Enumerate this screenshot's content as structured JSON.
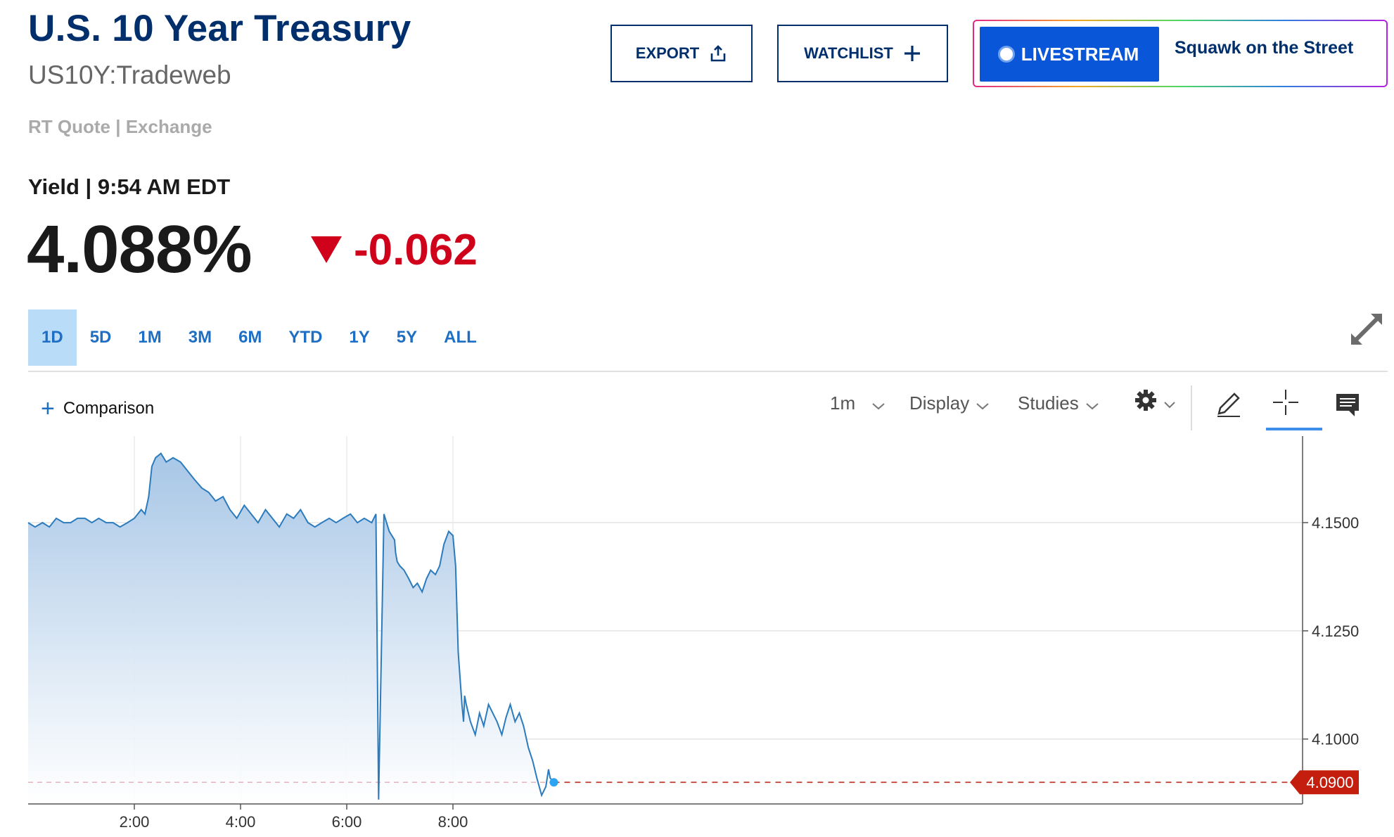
{
  "header": {
    "title": "U.S. 10 Year Treasury",
    "symbol": "US10Y:Tradeweb",
    "quote_type": "RT Quote | Exchange",
    "yield_label": "Yield | 9:54 AM EDT",
    "price": "4.088%",
    "change": "-0.062"
  },
  "actions": {
    "export_label": "EXPORT",
    "watchlist_label": "WATCHLIST",
    "livestream_label": "LIVESTREAM",
    "show_name": "Squawk on the Street"
  },
  "range_tabs": [
    "1D",
    "5D",
    "1M",
    "3M",
    "6M",
    "YTD",
    "1Y",
    "5Y",
    "ALL"
  ],
  "active_range": "1D",
  "toolbar": {
    "comparison_label": "Comparison",
    "interval": "1m",
    "display_label": "Display",
    "studies_label": "Studies"
  },
  "colors": {
    "brand_navy": "#002f6c",
    "accent_blue": "#1e6fc4",
    "negative_red": "#d0021b",
    "line_blue": "#2b7bbd",
    "live_blue": "#0957d8"
  },
  "icons": [
    "share-icon",
    "plus-icon",
    "live-dot-icon",
    "expand-icon",
    "chevron-down-icon",
    "gear-icon",
    "pencil-icon",
    "crosshair-icon",
    "comment-icon",
    "down-triangle-icon"
  ],
  "chart_data": {
    "type": "area",
    "x_ticks": [
      "2:00",
      "4:00",
      "6:00",
      "8:00"
    ],
    "y_ticks": [
      "4.1500",
      "4.1250",
      "4.1000"
    ],
    "y_tick_values": [
      4.15,
      4.125,
      4.1
    ],
    "ylim": [
      4.085,
      4.17
    ],
    "xlim_hours": [
      0.0,
      24.0
    ],
    "current_value": 4.09,
    "current_label": "4.0900",
    "grid": "horizontal",
    "series": [
      {
        "x": [
          0.0,
          0.13,
          0.27,
          0.4,
          0.53,
          0.67,
          0.8,
          0.93,
          1.07,
          1.2,
          1.33,
          1.47,
          1.6,
          1.73,
          1.87,
          2.0,
          2.13,
          2.2,
          2.27,
          2.33,
          2.4,
          2.5,
          2.6,
          2.73,
          2.87,
          3.0,
          3.13,
          3.27,
          3.4,
          3.53,
          3.67,
          3.8,
          3.93,
          4.07,
          4.2,
          4.33,
          4.47,
          4.6,
          4.73,
          4.87,
          5.0,
          5.13,
          5.27,
          5.4,
          5.53,
          5.67,
          5.8,
          5.93,
          6.07,
          6.2,
          6.33,
          6.47,
          6.55,
          6.6,
          6.7,
          6.8,
          6.9,
          6.92,
          6.95,
          7.0,
          7.08,
          7.17,
          7.25,
          7.33,
          7.42,
          7.5,
          7.58,
          7.67,
          7.75,
          7.83,
          7.92,
          8.0,
          8.05,
          8.1,
          8.17,
          8.2,
          8.22,
          8.25,
          8.33,
          8.42,
          8.5,
          8.58,
          8.67,
          8.75,
          8.83,
          8.92,
          9.0,
          9.08,
          9.17,
          9.25,
          9.33,
          9.42,
          9.5,
          9.58,
          9.67,
          9.75,
          9.8,
          9.83,
          9.9
        ],
        "y": [
          4.15,
          4.149,
          4.15,
          4.149,
          4.151,
          4.15,
          4.15,
          4.151,
          4.151,
          4.15,
          4.151,
          4.15,
          4.15,
          4.149,
          4.15,
          4.151,
          4.153,
          4.152,
          4.156,
          4.163,
          4.165,
          4.166,
          4.164,
          4.165,
          4.164,
          4.162,
          4.16,
          4.158,
          4.157,
          4.155,
          4.156,
          4.153,
          4.151,
          4.154,
          4.152,
          4.15,
          4.153,
          4.151,
          4.149,
          4.152,
          4.151,
          4.153,
          4.15,
          4.149,
          4.15,
          4.151,
          4.15,
          4.151,
          4.152,
          4.15,
          4.151,
          4.15,
          4.152,
          4.086,
          4.152,
          4.148,
          4.146,
          4.143,
          4.141,
          4.14,
          4.139,
          4.137,
          4.135,
          4.136,
          4.134,
          4.137,
          4.139,
          4.138,
          4.14,
          4.145,
          4.148,
          4.147,
          4.14,
          4.12,
          4.108,
          4.104,
          4.11,
          4.108,
          4.104,
          4.101,
          4.106,
          4.103,
          4.108,
          4.106,
          4.104,
          4.101,
          4.105,
          4.108,
          4.104,
          4.106,
          4.103,
          4.098,
          4.095,
          4.091,
          4.087,
          4.089,
          4.093,
          4.091,
          4.09
        ]
      }
    ]
  }
}
